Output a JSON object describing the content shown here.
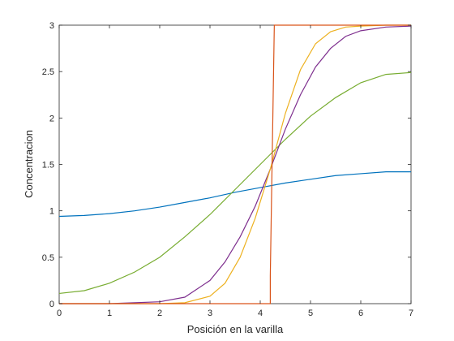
{
  "chart_data": {
    "type": "line",
    "title": "",
    "xlabel": "Posición en la varilla",
    "ylabel": "Concentracion",
    "xlim": [
      0,
      7
    ],
    "ylim": [
      0,
      3
    ],
    "x_ticks": [
      0,
      1,
      2,
      3,
      4,
      5,
      6,
      7
    ],
    "y_ticks": [
      0,
      0.5,
      1,
      1.5,
      2,
      2.5,
      3
    ],
    "x_tick_labels": [
      "0",
      "1",
      "2",
      "3",
      "4",
      "5",
      "6",
      "7"
    ],
    "y_tick_labels": [
      "0",
      "0.5",
      "1",
      "1.5",
      "2",
      "2.5",
      "3"
    ],
    "grid": false,
    "legend": "none",
    "series": [
      {
        "color": "#0072BD",
        "x": [
          0,
          0.5,
          1,
          1.5,
          2,
          2.5,
          3,
          3.5,
          4,
          4.5,
          5,
          5.5,
          6,
          6.5,
          7
        ],
        "y": [
          0.94,
          0.95,
          0.97,
          1.0,
          1.04,
          1.09,
          1.14,
          1.2,
          1.25,
          1.3,
          1.34,
          1.38,
          1.4,
          1.42,
          1.42
        ]
      },
      {
        "color": "#77AC30",
        "x": [
          0,
          0.5,
          1,
          1.5,
          2,
          2.5,
          3,
          3.5,
          4,
          4.5,
          5,
          5.5,
          6,
          6.5,
          7
        ],
        "y": [
          0.11,
          0.14,
          0.22,
          0.34,
          0.5,
          0.72,
          0.96,
          1.23,
          1.5,
          1.77,
          2.02,
          2.22,
          2.38,
          2.47,
          2.49
        ]
      },
      {
        "color": "#7E2F8E",
        "x": [
          0,
          0.5,
          1,
          1.5,
          2,
          2.5,
          3,
          3.3,
          3.6,
          3.9,
          4.2,
          4.5,
          4.8,
          5.1,
          5.4,
          5.7,
          6,
          6.5,
          7
        ],
        "y": [
          0,
          0,
          0,
          0.01,
          0.02,
          0.07,
          0.25,
          0.45,
          0.72,
          1.05,
          1.45,
          1.88,
          2.25,
          2.55,
          2.75,
          2.88,
          2.94,
          2.98,
          2.99
        ]
      },
      {
        "color": "#EDB120",
        "x": [
          0,
          1,
          2,
          2.5,
          3,
          3.3,
          3.6,
          3.9,
          4.2,
          4.5,
          4.8,
          5.1,
          5.4,
          5.7,
          6,
          6.5,
          7
        ],
        "y": [
          0,
          0,
          0,
          0.01,
          0.08,
          0.22,
          0.5,
          0.92,
          1.45,
          2.05,
          2.52,
          2.8,
          2.93,
          2.98,
          2.99,
          3.0,
          3.0
        ]
      },
      {
        "color": "#D95319",
        "x": [
          0,
          4.2,
          4.2,
          4.28,
          7
        ],
        "y": [
          0,
          0,
          0.3,
          3.0,
          3.0
        ]
      }
    ]
  }
}
